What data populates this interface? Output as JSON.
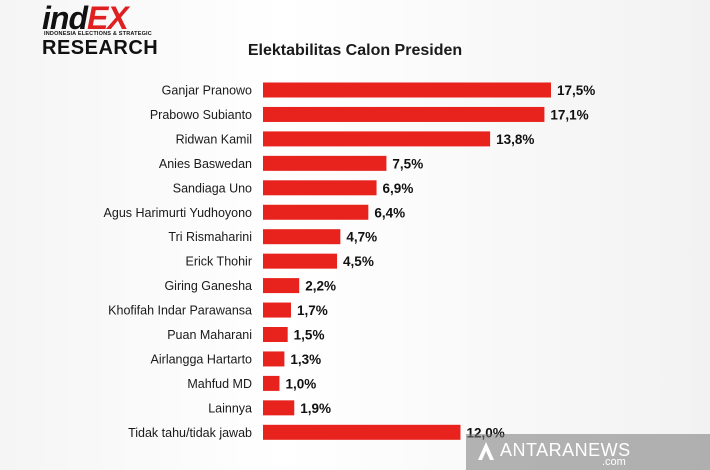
{
  "logo": {
    "brand_dark": "ind",
    "brand_red": "EX",
    "tagline": "INDONESIA ELECTIONS & STRATEGIC",
    "research": "RESEARCH"
  },
  "chart_data": {
    "type": "bar",
    "orientation": "horizontal",
    "title": "Elektabilitas Calon Presiden",
    "xlabel": "",
    "ylabel": "",
    "xlim": [
      0,
      17.5
    ],
    "grid": false,
    "bar_color": "#e8221c",
    "categories": [
      "Ganjar Pranowo",
      "Prabowo Subianto",
      "Ridwan Kamil",
      "Anies Baswedan",
      "Sandiaga Uno",
      "Agus Harimurti Yudhoyono",
      "Tri Rismaharini",
      "Erick Thohir",
      "Giring Ganesha",
      "Khofifah Indar Parawansa",
      "Puan Maharani",
      "Airlangga Hartarto",
      "Mahfud MD",
      "Lainnya",
      "Tidak tahu/tidak jawab"
    ],
    "values": [
      17.5,
      17.1,
      13.8,
      7.5,
      6.9,
      6.4,
      4.7,
      4.5,
      2.2,
      1.7,
      1.5,
      1.3,
      1.0,
      1.9,
      12.0
    ],
    "labels": [
      "17,5%",
      "17,1%",
      "13,8%",
      "7,5%",
      "6,9%",
      "6,4%",
      "4,7%",
      "4,5%",
      "2,2%",
      "1,7%",
      "1,5%",
      "1,3%",
      "1,0%",
      "1,9%",
      "12,0%"
    ]
  },
  "watermark": {
    "text": "ANTARANEWS",
    "suffix": ".com"
  }
}
